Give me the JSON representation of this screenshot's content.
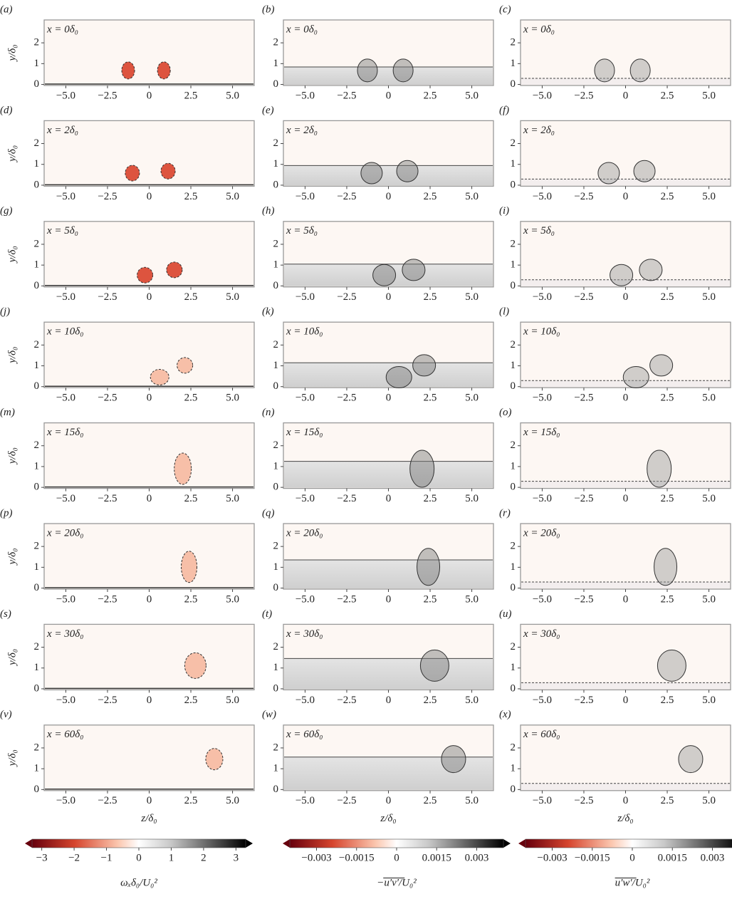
{
  "chart_data": {
    "type": "contour-grid",
    "panels": [
      {
        "label": "(a)",
        "annotation": "x = 0δ₀"
      },
      {
        "label": "(b)",
        "annotation": "x = 0δ₀"
      },
      {
        "label": "(c)",
        "annotation": "x = 0δ₀"
      },
      {
        "label": "(d)",
        "annotation": "x = 2δ₀"
      },
      {
        "label": "(e)",
        "annotation": "x = 2δ₀"
      },
      {
        "label": "(f)",
        "annotation": "x = 2δ₀"
      },
      {
        "label": "(g)",
        "annotation": "x = 5δ₀"
      },
      {
        "label": "(h)",
        "annotation": "x = 5δ₀"
      },
      {
        "label": "(i)",
        "annotation": "x = 5δ₀"
      },
      {
        "label": "(j)",
        "annotation": "x = 10δ₀"
      },
      {
        "label": "(k)",
        "annotation": "x = 10δ₀"
      },
      {
        "label": "(l)",
        "annotation": "x = 10δ₀"
      },
      {
        "label": "(m)",
        "annotation": "x = 15δ₀"
      },
      {
        "label": "(n)",
        "annotation": "x = 15δ₀"
      },
      {
        "label": "(o)",
        "annotation": "x = 15δ₀"
      },
      {
        "label": "(p)",
        "annotation": "x = 20δ₀"
      },
      {
        "label": "(q)",
        "annotation": "x = 20δ₀"
      },
      {
        "label": "(r)",
        "annotation": "x = 20δ₀"
      },
      {
        "label": "(s)",
        "annotation": "x = 30δ₀"
      },
      {
        "label": "(t)",
        "annotation": "x = 30δ₀"
      },
      {
        "label": "(u)",
        "annotation": "x = 30δ₀"
      },
      {
        "label": "(v)",
        "annotation": "x = 60δ₀"
      },
      {
        "label": "(w)",
        "annotation": "x = 60δ₀"
      },
      {
        "label": "(x)",
        "annotation": "x = 60δ₀"
      }
    ],
    "xlabel": "z/δ₀",
    "ylabel": "y/δ₀",
    "xlim": [
      -6.3,
      6.3
    ],
    "xticks": [
      {
        "value": -5,
        "label": "−5.0"
      },
      {
        "value": -2.5,
        "label": "−2.5"
      },
      0,
      2.5,
      {
        "value": 5,
        "label": "5.0"
      }
    ],
    "ylim": [
      -0.05,
      3.1
    ],
    "yticks": [
      0,
      1,
      2
    ],
    "colorbars": [
      {
        "label": "ωₓδ₀/U₀²",
        "lim": [
          -3.3,
          3.3
        ],
        "ticks": [
          {
            "value": -3,
            "label": "−3"
          },
          {
            "value": -2,
            "label": "−2"
          },
          {
            "value": -1,
            "label": "−1"
          },
          0,
          1,
          2,
          3
        ]
      },
      {
        "label": "−u′v′/U₀²",
        "lim": [
          -0.004,
          0.004
        ],
        "ticks": [
          {
            "value": -0.003,
            "label": "−0.003"
          },
          {
            "value": -0.0015,
            "label": "−0.0015"
          },
          0,
          0.0015,
          0.003
        ]
      },
      {
        "label": "u′w′/U₀²",
        "lim": [
          -0.004,
          0.004
        ],
        "ticks": [
          {
            "value": -0.003,
            "label": "−0.003"
          },
          {
            "value": -0.0015,
            "label": "−0.0015"
          },
          0,
          0.0015,
          0.003
        ]
      }
    ]
  }
}
